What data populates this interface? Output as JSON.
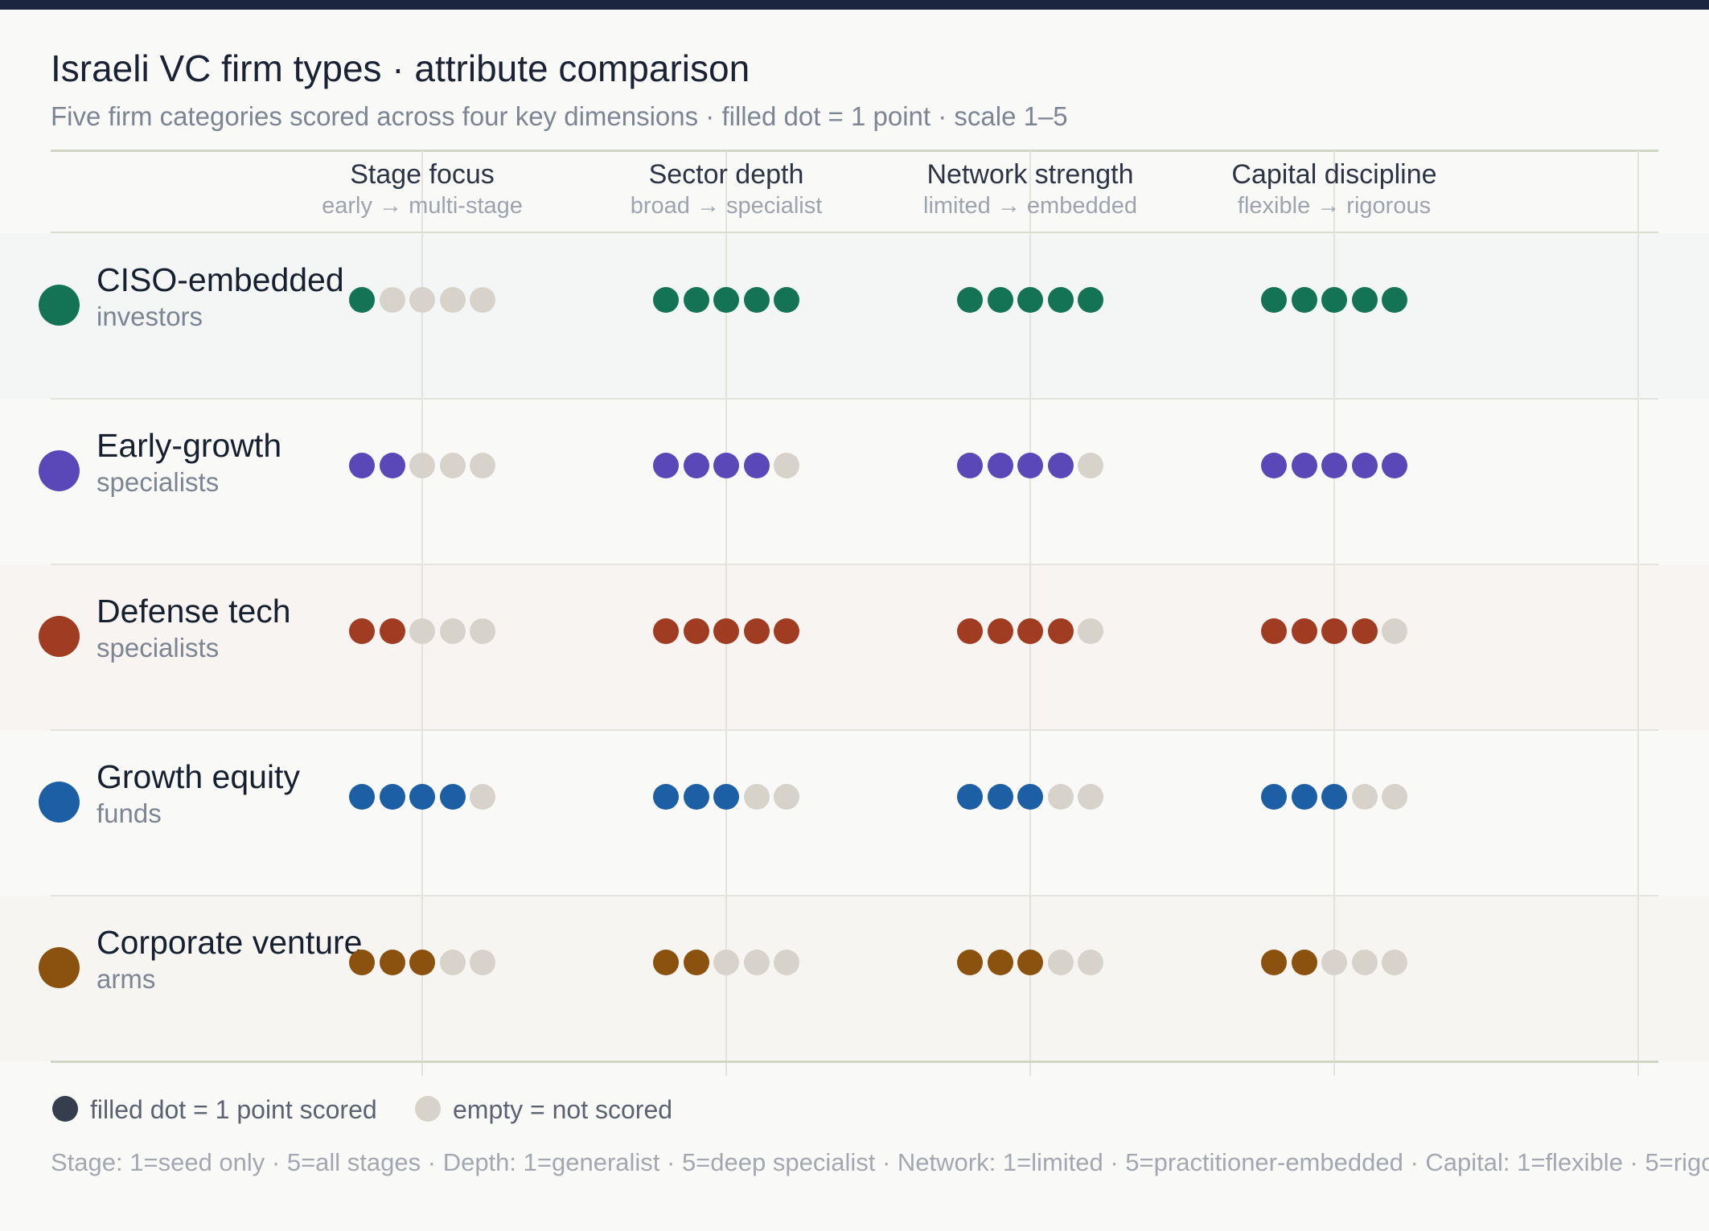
{
  "title": "Israeli VC firm types · attribute comparison",
  "subtitle": "Five firm categories scored across four key dimensions · filled dot = 1 point · scale 1–5",
  "columns": [
    {
      "name": "Stage focus",
      "range": "early → multi-stage"
    },
    {
      "name": "Sector depth",
      "range": "broad → specialist"
    },
    {
      "name": "Network strength",
      "range": "limited → embedded"
    },
    {
      "name": "Capital discipline",
      "range": "flexible → rigorous"
    }
  ],
  "rows": [
    {
      "name": "CISO-embedded",
      "sub": "investors",
      "color": "#147355",
      "band": "#f3f6f4"
    },
    {
      "name": "Early-growth",
      "sub": "specialists",
      "color": "#5a48b8",
      "band": "#f9f9f7"
    },
    {
      "name": "Defense tech",
      "sub": "specialists",
      "color": "#a03c22",
      "band": "#f8f4f1"
    },
    {
      "name": "Growth equity",
      "sub": "funds",
      "color": "#1c5fa5",
      "band": "#f9f9f7"
    },
    {
      "name": "Corporate venture",
      "sub": "arms",
      "color": "#8a520e",
      "band": "#f6f5f1"
    }
  ],
  "legend": {
    "filled": "filled dot = 1 point scored",
    "empty": "empty = not scored",
    "filled_color": "#363d4d",
    "empty_color": "#d7d3cb"
  },
  "footnote": "Stage: 1=seed only · 5=all stages · Depth: 1=generalist · 5=deep specialist · Network: 1=limited · 5=practitioner-embedded · Capital: 1=flexible · 5=rigo",
  "chart_data": {
    "type": "table",
    "scale": [
      1,
      5
    ],
    "categories": [
      "Stage focus",
      "Sector depth",
      "Network strength",
      "Capital discipline"
    ],
    "series": [
      {
        "name": "CISO-embedded investors",
        "values": [
          1,
          5,
          5,
          5
        ]
      },
      {
        "name": "Early-growth specialists",
        "values": [
          2,
          4,
          4,
          5
        ]
      },
      {
        "name": "Defense tech specialists",
        "values": [
          2,
          5,
          4,
          4
        ]
      },
      {
        "name": "Growth equity funds",
        "values": [
          4,
          3,
          3,
          3
        ]
      },
      {
        "name": "Corporate venture arms",
        "values": [
          3,
          2,
          3,
          2
        ]
      }
    ]
  }
}
